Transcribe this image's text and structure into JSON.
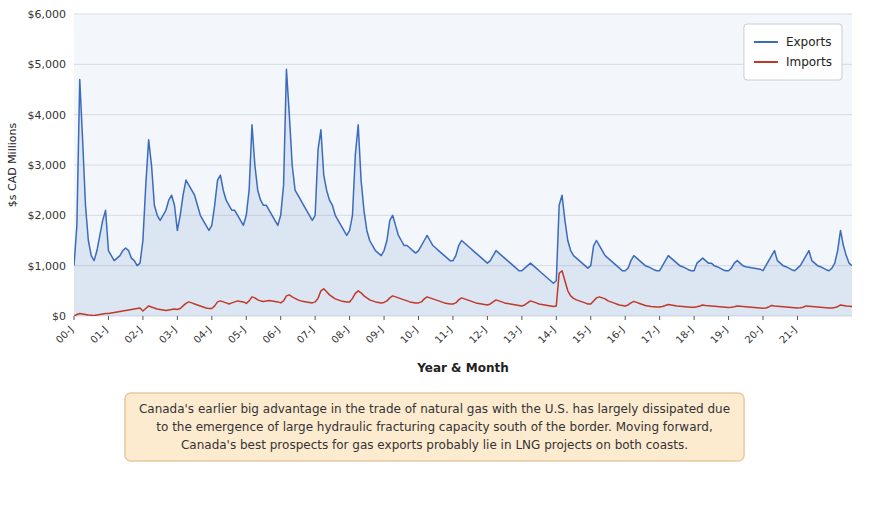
{
  "chart_data": {
    "type": "line",
    "xlabel": "Year & Month",
    "ylabel": "$s CAD Millions",
    "annotation": "Canada's earlier big advantage in the trade of natural gas with the U.S. has largely dissipated due\nto the emergence of large hydraulic fracturing capacity south of the border. Moving forward,\nCanada's best prospects for gas exports probably lie in LNG projects on both coasts.",
    "categories": [
      "00-J",
      null,
      null,
      null,
      null,
      null,
      null,
      null,
      null,
      null,
      null,
      null,
      "01-J",
      null,
      null,
      null,
      null,
      null,
      null,
      null,
      null,
      null,
      null,
      null,
      "02-J",
      null,
      null,
      null,
      null,
      null,
      null,
      null,
      null,
      null,
      null,
      null,
      "03-J",
      null,
      null,
      null,
      null,
      null,
      null,
      null,
      null,
      null,
      null,
      null,
      "04-J",
      null,
      null,
      null,
      null,
      null,
      null,
      null,
      null,
      null,
      null,
      null,
      "05-J",
      null,
      null,
      null,
      null,
      null,
      null,
      null,
      null,
      null,
      null,
      null,
      "06-J",
      null,
      null,
      null,
      null,
      null,
      null,
      null,
      null,
      null,
      null,
      null,
      "07-J",
      null,
      null,
      null,
      null,
      null,
      null,
      null,
      null,
      null,
      null,
      null,
      "08-J",
      null,
      null,
      null,
      null,
      null,
      null,
      null,
      null,
      null,
      null,
      null,
      "09-J",
      null,
      null,
      null,
      null,
      null,
      null,
      null,
      null,
      null,
      null,
      null,
      "10-J",
      null,
      null,
      null,
      null,
      null,
      null,
      null,
      null,
      null,
      null,
      null,
      "11-J",
      null,
      null,
      null,
      null,
      null,
      null,
      null,
      null,
      null,
      null,
      null,
      "12-J",
      null,
      null,
      null,
      null,
      null,
      null,
      null,
      null,
      null,
      null,
      null,
      "13-J",
      null,
      null,
      null,
      null,
      null,
      null,
      null,
      null,
      null,
      null,
      null,
      "14-J",
      null,
      null,
      null,
      null,
      null,
      null,
      null,
      null,
      null,
      null,
      null,
      "15-J",
      null,
      null,
      null,
      null,
      null,
      null,
      null,
      null,
      null,
      null,
      null,
      "16-J",
      null,
      null,
      null,
      null,
      null,
      null,
      null,
      null,
      null,
      null,
      null,
      "17-J",
      null,
      null,
      null,
      null,
      null,
      null,
      null,
      null,
      null,
      null,
      null,
      "18-J",
      null,
      null,
      null,
      null,
      null,
      null,
      null,
      null,
      null,
      null,
      null,
      "19-J",
      null,
      null,
      null,
      null,
      null,
      null,
      null,
      null,
      null,
      null,
      null,
      "20-J",
      null,
      null,
      null,
      null,
      null,
      null,
      null,
      null,
      null,
      null,
      null,
      "21-J",
      null,
      null,
      null,
      null,
      null,
      null,
      null,
      null,
      null,
      null,
      null,
      null,
      null,
      null,
      null,
      null,
      null,
      null,
      null
    ],
    "series": [
      {
        "name": "Exports",
        "type": "area",
        "color": "#3B6BBD",
        "values": [
          1000,
          1800,
          4700,
          3500,
          2200,
          1500,
          1200,
          1100,
          1300,
          1600,
          1900,
          2100,
          1300,
          1200,
          1100,
          1150,
          1200,
          1300,
          1350,
          1300,
          1150,
          1100,
          1000,
          1050,
          1500,
          2600,
          3500,
          3000,
          2200,
          2000,
          1900,
          2000,
          2100,
          2300,
          2400,
          2200,
          1700,
          2000,
          2400,
          2700,
          2600,
          2500,
          2400,
          2200,
          2000,
          1900,
          1800,
          1700,
          1800,
          2200,
          2700,
          2800,
          2500,
          2300,
          2200,
          2100,
          2100,
          2000,
          1900,
          1800,
          2000,
          2500,
          3800,
          3000,
          2500,
          2300,
          2200,
          2200,
          2100,
          2000,
          1900,
          1800,
          2000,
          2600,
          4900,
          4000,
          3000,
          2500,
          2400,
          2300,
          2200,
          2100,
          2000,
          1900,
          2000,
          3300,
          3700,
          2800,
          2500,
          2300,
          2200,
          2000,
          1900,
          1800,
          1700,
          1600,
          1700,
          2000,
          3200,
          3800,
          2700,
          2100,
          1700,
          1500,
          1400,
          1300,
          1250,
          1200,
          1300,
          1500,
          1900,
          2000,
          1800,
          1600,
          1500,
          1400,
          1400,
          1350,
          1300,
          1250,
          1300,
          1400,
          1500,
          1600,
          1500,
          1400,
          1350,
          1300,
          1250,
          1200,
          1150,
          1100,
          1100,
          1200,
          1400,
          1500,
          1450,
          1400,
          1350,
          1300,
          1250,
          1200,
          1150,
          1100,
          1050,
          1100,
          1200,
          1300,
          1250,
          1200,
          1150,
          1100,
          1050,
          1000,
          950,
          900,
          900,
          950,
          1000,
          1050,
          1000,
          950,
          900,
          850,
          800,
          750,
          700,
          650,
          700,
          2200,
          2400,
          1900,
          1500,
          1300,
          1200,
          1150,
          1100,
          1050,
          1000,
          950,
          1000,
          1400,
          1500,
          1400,
          1300,
          1200,
          1150,
          1100,
          1050,
          1000,
          950,
          900,
          900,
          950,
          1100,
          1200,
          1150,
          1100,
          1050,
          1000,
          980,
          950,
          920,
          900,
          900,
          1000,
          1100,
          1200,
          1150,
          1100,
          1050,
          1000,
          980,
          950,
          920,
          900,
          900,
          1050,
          1100,
          1150,
          1100,
          1050,
          1050,
          1000,
          980,
          950,
          920,
          900,
          900,
          950,
          1050,
          1100,
          1050,
          1000,
          980,
          970,
          960,
          950,
          940,
          930,
          900,
          1000,
          1100,
          1200,
          1300,
          1100,
          1050,
          1000,
          980,
          950,
          920,
          900,
          950,
          1000,
          1100,
          1200,
          1300,
          1100,
          1050,
          1000,
          980,
          950,
          920,
          900,
          950,
          1050,
          1300,
          1700,
          1400,
          1200,
          1050,
          1000
        ]
      },
      {
        "name": "Imports",
        "type": "line",
        "color": "#C0392B",
        "values": [
          0,
          30,
          50,
          40,
          30,
          20,
          15,
          10,
          20,
          30,
          40,
          50,
          50,
          60,
          70,
          80,
          90,
          100,
          110,
          120,
          130,
          140,
          150,
          160,
          100,
          150,
          200,
          180,
          160,
          140,
          130,
          120,
          110,
          120,
          130,
          140,
          130,
          150,
          200,
          250,
          280,
          260,
          240,
          220,
          200,
          180,
          160,
          150,
          150,
          200,
          280,
          300,
          280,
          260,
          240,
          260,
          280,
          300,
          290,
          280,
          250,
          300,
          380,
          360,
          320,
          300,
          290,
          300,
          310,
          300,
          290,
          280,
          260,
          300,
          400,
          420,
          380,
          350,
          320,
          300,
          290,
          280,
          270,
          260,
          280,
          350,
          500,
          540,
          480,
          420,
          380,
          340,
          320,
          300,
          290,
          280,
          280,
          350,
          450,
          500,
          460,
          400,
          360,
          320,
          300,
          280,
          270,
          260,
          270,
          300,
          360,
          400,
          380,
          360,
          340,
          320,
          300,
          280,
          270,
          260,
          260,
          280,
          340,
          380,
          360,
          340,
          320,
          300,
          280,
          260,
          250,
          240,
          240,
          260,
          320,
          360,
          340,
          320,
          300,
          280,
          260,
          250,
          240,
          230,
          220,
          240,
          280,
          320,
          300,
          280,
          260,
          250,
          240,
          230,
          220,
          210,
          200,
          220,
          260,
          300,
          280,
          260,
          240,
          230,
          220,
          210,
          200,
          190,
          200,
          850,
          900,
          700,
          500,
          400,
          350,
          320,
          300,
          280,
          260,
          240,
          240,
          300,
          360,
          380,
          360,
          340,
          300,
          280,
          260,
          240,
          220,
          210,
          200,
          220,
          260,
          290,
          270,
          250,
          230,
          210,
          200,
          190,
          185,
          180,
          180,
          190,
          210,
          230,
          220,
          210,
          200,
          195,
          190,
          185,
          180,
          175,
          175,
          185,
          200,
          220,
          210,
          205,
          200,
          195,
          190,
          185,
          180,
          175,
          170,
          175,
          185,
          200,
          195,
          190,
          185,
          180,
          175,
          170,
          165,
          160,
          155,
          160,
          180,
          210,
          200,
          195,
          190,
          185,
          180,
          175,
          170,
          165,
          160,
          165,
          175,
          200,
          195,
          190,
          185,
          180,
          175,
          170,
          165,
          160,
          160,
          170,
          185,
          220,
          210,
          200,
          195,
          190
        ]
      }
    ],
    "ylim": [
      0,
      6000
    ],
    "yticks": [
      {
        "value": 0,
        "label": "$0"
      },
      {
        "value": 1000,
        "label": "$1,000"
      },
      {
        "value": 2000,
        "label": "$2,000"
      },
      {
        "value": 3000,
        "label": "$3,000"
      },
      {
        "value": 4000,
        "label": "$4,000"
      },
      {
        "value": 5000,
        "label": "$5,000"
      },
      {
        "value": 6000,
        "label": "$6,000"
      }
    ],
    "grid": true,
    "legend": "top-right"
  }
}
